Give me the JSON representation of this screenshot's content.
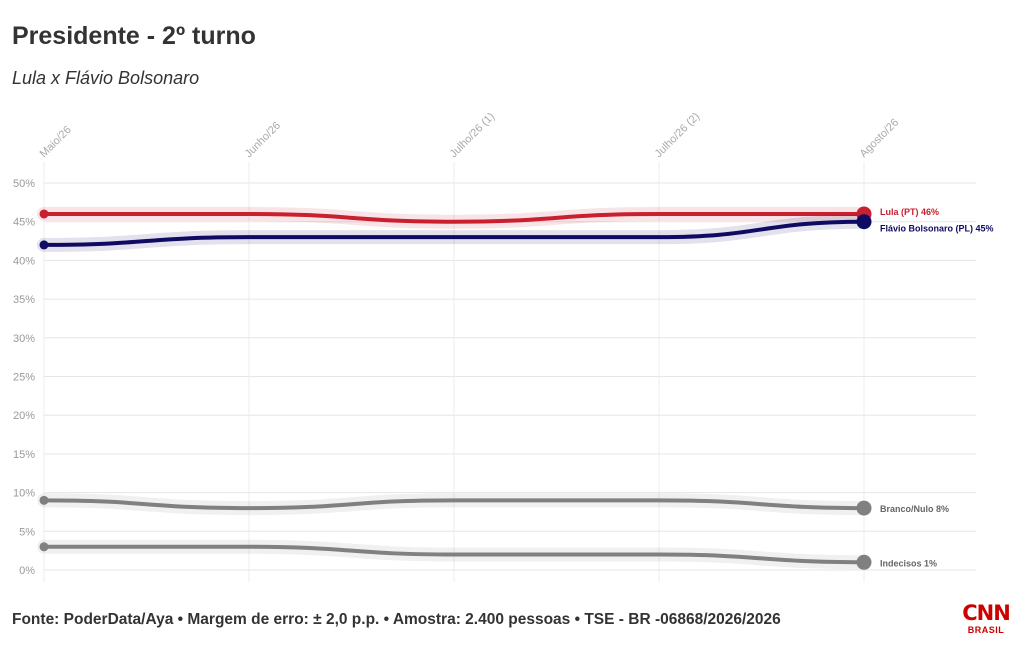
{
  "header": {
    "title": "Presidente - 2º turno",
    "subtitle": "Lula x Flávio Bolsonaro"
  },
  "footer": {
    "source": "Fonte: PoderData/Aya • Margem de erro: ± 2,0 p.p. • Amostra: 2.400 pessoas • TSE - BR -06868/2026/2026"
  },
  "logo": {
    "main": "CNN",
    "sub": "BRASIL"
  },
  "chart_data": {
    "type": "line",
    "title": "Presidente - 2º turno",
    "subtitle": "Lula x Flávio Bolsonaro",
    "categories": [
      "Maio/26",
      "Junho/26",
      "Julho/26 (1)",
      "Julho/26 (2)",
      "Agosto/26"
    ],
    "y_ticks": [
      "0%",
      "5%",
      "10%",
      "15%",
      "20%",
      "25%",
      "30%",
      "35%",
      "40%",
      "45%",
      "50%"
    ],
    "ylim": [
      0,
      50
    ],
    "grid": true,
    "legend": "end-labels",
    "series": [
      {
        "name": "Lula (PT)",
        "label": "Lula (PT) 46%",
        "color": "#c8202f",
        "values": [
          46,
          46,
          45,
          46,
          46
        ]
      },
      {
        "name": "Flávio Bolsonaro (PL)",
        "label": "Flávio Bolsonaro (PL) 45%",
        "color": "#0f0b63",
        "values": [
          42,
          43,
          43,
          43,
          45
        ]
      },
      {
        "name": "Branco/Nulo",
        "label": "Branco/Nulo 8%",
        "color": "#808080",
        "values": [
          9,
          8,
          9,
          9,
          8
        ]
      },
      {
        "name": "Indecisos",
        "label": "Indecisos 1%",
        "color": "#808080",
        "values": [
          3,
          3,
          2,
          2,
          1
        ]
      }
    ]
  }
}
